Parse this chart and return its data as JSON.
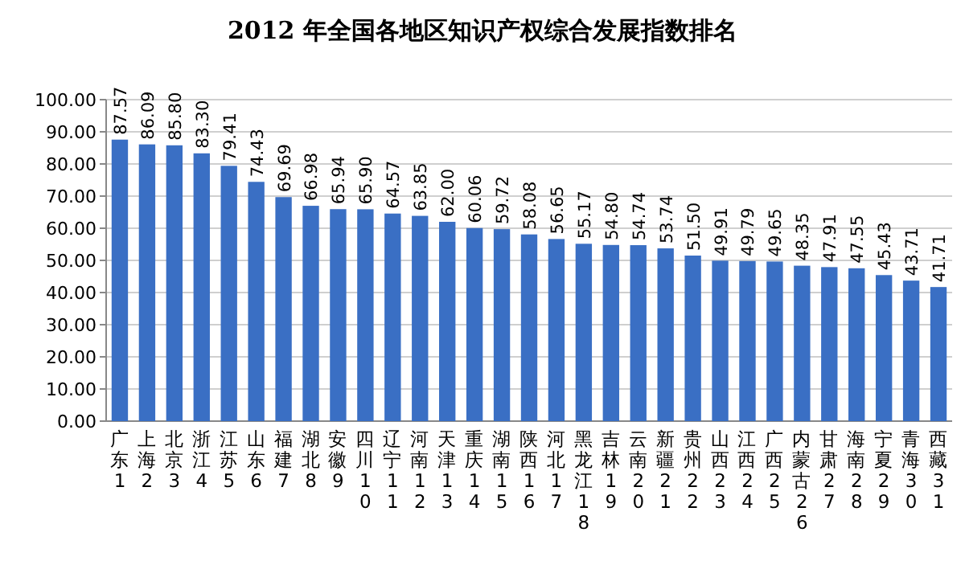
{
  "chart_data": {
    "type": "bar",
    "title": "2012 年全国各地区知识产权综合发展指数排名",
    "categories": [
      "广东1",
      "上海2",
      "北京3",
      "浙江4",
      "江苏5",
      "山东6",
      "福建7",
      "湖北8",
      "安徽9",
      "四川10",
      "辽宁11",
      "河南12",
      "天津13",
      "重庆14",
      "湖南15",
      "陕西16",
      "河北17",
      "黑龙江18",
      "吉林19",
      "云南20",
      "新疆21",
      "贵州22",
      "山西23",
      "江西24",
      "广西25",
      "内蒙古26",
      "甘肃27",
      "海南28",
      "宁夏29",
      "青海30",
      "西藏31"
    ],
    "values": [
      87.57,
      86.09,
      85.8,
      83.3,
      79.41,
      74.43,
      69.69,
      66.98,
      65.94,
      65.9,
      64.57,
      63.85,
      62,
      60.06,
      59.72,
      58.08,
      56.65,
      55.17,
      54.8,
      54.74,
      53.74,
      51.5,
      49.91,
      49.79,
      49.65,
      48.35,
      47.91,
      47.55,
      45.43,
      43.71,
      41.71
    ],
    "value_labels": [
      "87.57",
      "86.09",
      "85.80",
      "83.30",
      "79.41",
      "74.43",
      "69.69",
      "66.98",
      "65.94",
      "65.90",
      "64.57",
      "63.85",
      "62.00",
      "60.06",
      "59.72",
      "58.08",
      "56.65",
      "55.17",
      "54.80",
      "54.74",
      "53.74",
      "51.50",
      "49.91",
      "49.79",
      "49.65",
      "48.35",
      "47.91",
      "47.55",
      "45.43",
      "43.71",
      "41.71"
    ],
    "color": "#3a6fc4",
    "ylim": [
      0,
      100
    ],
    "yticks": [
      {
        "value": 0,
        "label": "0.00"
      },
      {
        "value": 10,
        "label": "10.00"
      },
      {
        "value": 20,
        "label": "20.00"
      },
      {
        "value": 30,
        "label": "30.00"
      },
      {
        "value": 40,
        "label": "40.00"
      },
      {
        "value": 50,
        "label": "50.00"
      },
      {
        "value": 60,
        "label": "60.00"
      },
      {
        "value": 70,
        "label": "70.00"
      },
      {
        "value": 80,
        "label": "80.00"
      },
      {
        "value": 90,
        "label": "90.00"
      },
      {
        "value": 100,
        "label": "100.00"
      }
    ],
    "grid": "y"
  }
}
